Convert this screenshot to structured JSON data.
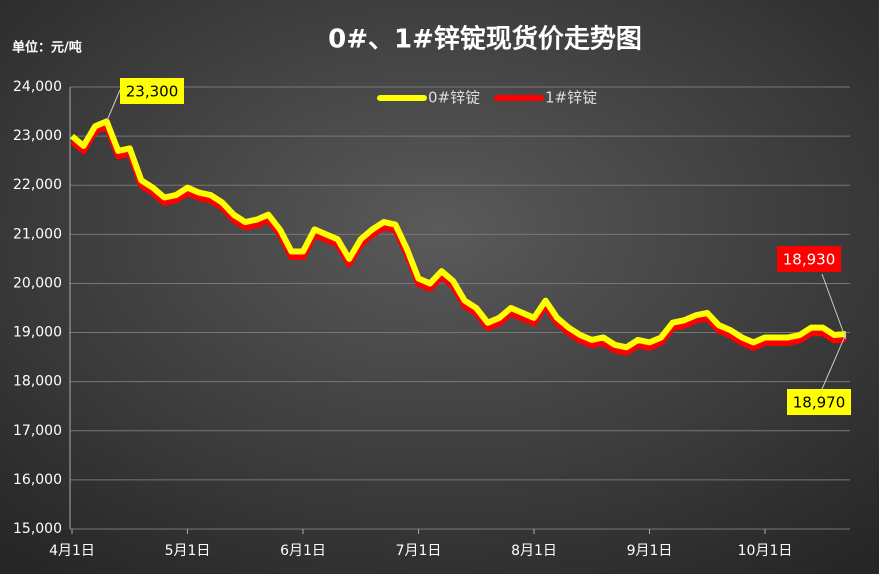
{
  "chart_data": {
    "type": "line",
    "title": "0#、1#锌锭现货价走势图",
    "unit_label": "单位：元/吨",
    "categories": [
      "4月1日",
      null,
      null,
      null,
      null,
      null,
      null,
      null,
      null,
      null,
      "5月1日",
      null,
      null,
      null,
      null,
      null,
      null,
      null,
      null,
      null,
      "6月1日",
      null,
      null,
      null,
      null,
      null,
      null,
      null,
      null,
      null,
      "7月1日",
      null,
      null,
      null,
      null,
      null,
      null,
      null,
      null,
      null,
      "8月1日",
      null,
      null,
      null,
      null,
      null,
      null,
      null,
      null,
      null,
      "9月1日",
      null,
      null,
      null,
      null,
      null,
      null,
      null,
      null,
      null,
      "10月1日",
      null,
      null,
      null,
      null,
      null,
      null,
      null
    ],
    "series": [
      {
        "name": "1#锌锭",
        "color": "#ff0000",
        "values": [
          22950,
          22750,
          23150,
          23250,
          22650,
          22700,
          22050,
          21900,
          21700,
          21750,
          21900,
          21800,
          21750,
          21600,
          21350,
          21200,
          21250,
          21350,
          21050,
          20600,
          20600,
          21050,
          20950,
          20850,
          20450,
          20850,
          21050,
          21200,
          21150,
          20650,
          20050,
          19950,
          20200,
          20000,
          19600,
          19450,
          19150,
          19250,
          19450,
          19350,
          19250,
          19600,
          19250,
          19050,
          18900,
          18800,
          18850,
          18700,
          18650,
          18800,
          18750,
          18850,
          19150,
          19200,
          19300,
          19350,
          19100,
          19000,
          18850,
          18750,
          18850,
          18850,
          18850,
          18900,
          19050,
          19050,
          18900,
          18930
        ],
        "value_labels": [
          null,
          null,
          null,
          null,
          null,
          null,
          null,
          null,
          null,
          null,
          null,
          null,
          null,
          null,
          null,
          null,
          null,
          null,
          null,
          null,
          null,
          null,
          null,
          null,
          null,
          null,
          null,
          null,
          null,
          null,
          null,
          null,
          null,
          null,
          null,
          null,
          null,
          null,
          null,
          null,
          null,
          null,
          null,
          null,
          null,
          null,
          null,
          null,
          null,
          null,
          null,
          null,
          null,
          null,
          null,
          null,
          null,
          null,
          null,
          null,
          null,
          null,
          null,
          null,
          null,
          null,
          null,
          "18,930"
        ]
      },
      {
        "name": "0#锌锭",
        "color": "#ffff00",
        "values": [
          23000,
          22800,
          23200,
          23300,
          22700,
          22750,
          22100,
          21950,
          21750,
          21800,
          21950,
          21850,
          21800,
          21650,
          21400,
          21250,
          21300,
          21400,
          21100,
          20650,
          20650,
          21100,
          21000,
          20900,
          20500,
          20900,
          21100,
          21250,
          21200,
          20700,
          20100,
          20000,
          20250,
          20050,
          19650,
          19500,
          19200,
          19300,
          19500,
          19400,
          19300,
          19650,
          19300,
          19100,
          18950,
          18850,
          18900,
          18750,
          18700,
          18850,
          18800,
          18900,
          19200,
          19250,
          19350,
          19400,
          19150,
          19050,
          18900,
          18800,
          18900,
          18900,
          18900,
          18950,
          19100,
          19100,
          18950,
          18970
        ],
        "value_labels": [
          null,
          null,
          null,
          "23,300",
          null,
          null,
          null,
          null,
          null,
          null,
          null,
          null,
          null,
          null,
          null,
          null,
          null,
          null,
          null,
          null,
          null,
          null,
          null,
          null,
          null,
          null,
          null,
          null,
          null,
          null,
          null,
          null,
          null,
          null,
          null,
          null,
          null,
          null,
          null,
          null,
          null,
          null,
          null,
          null,
          null,
          null,
          null,
          null,
          null,
          null,
          null,
          null,
          null,
          null,
          null,
          null,
          null,
          null,
          null,
          null,
          null,
          null,
          null,
          null,
          null,
          null,
          null,
          "18,970"
        ]
      }
    ],
    "ylim": [
      15000,
      24000
    ],
    "yticks": [
      {
        "value": 15000,
        "label": "15,000"
      },
      {
        "value": 16000,
        "label": "16,000"
      },
      {
        "value": 17000,
        "label": "17,000"
      },
      {
        "value": 18000,
        "label": "18,000"
      },
      {
        "value": 19000,
        "label": "19,000"
      },
      {
        "value": 20000,
        "label": "20,000"
      },
      {
        "value": 21000,
        "label": "21,000"
      },
      {
        "value": 22000,
        "label": "22,000"
      },
      {
        "value": 23000,
        "label": "23,000"
      },
      {
        "value": 24000,
        "label": "24,000"
      }
    ],
    "grid": true,
    "legend": "top"
  }
}
